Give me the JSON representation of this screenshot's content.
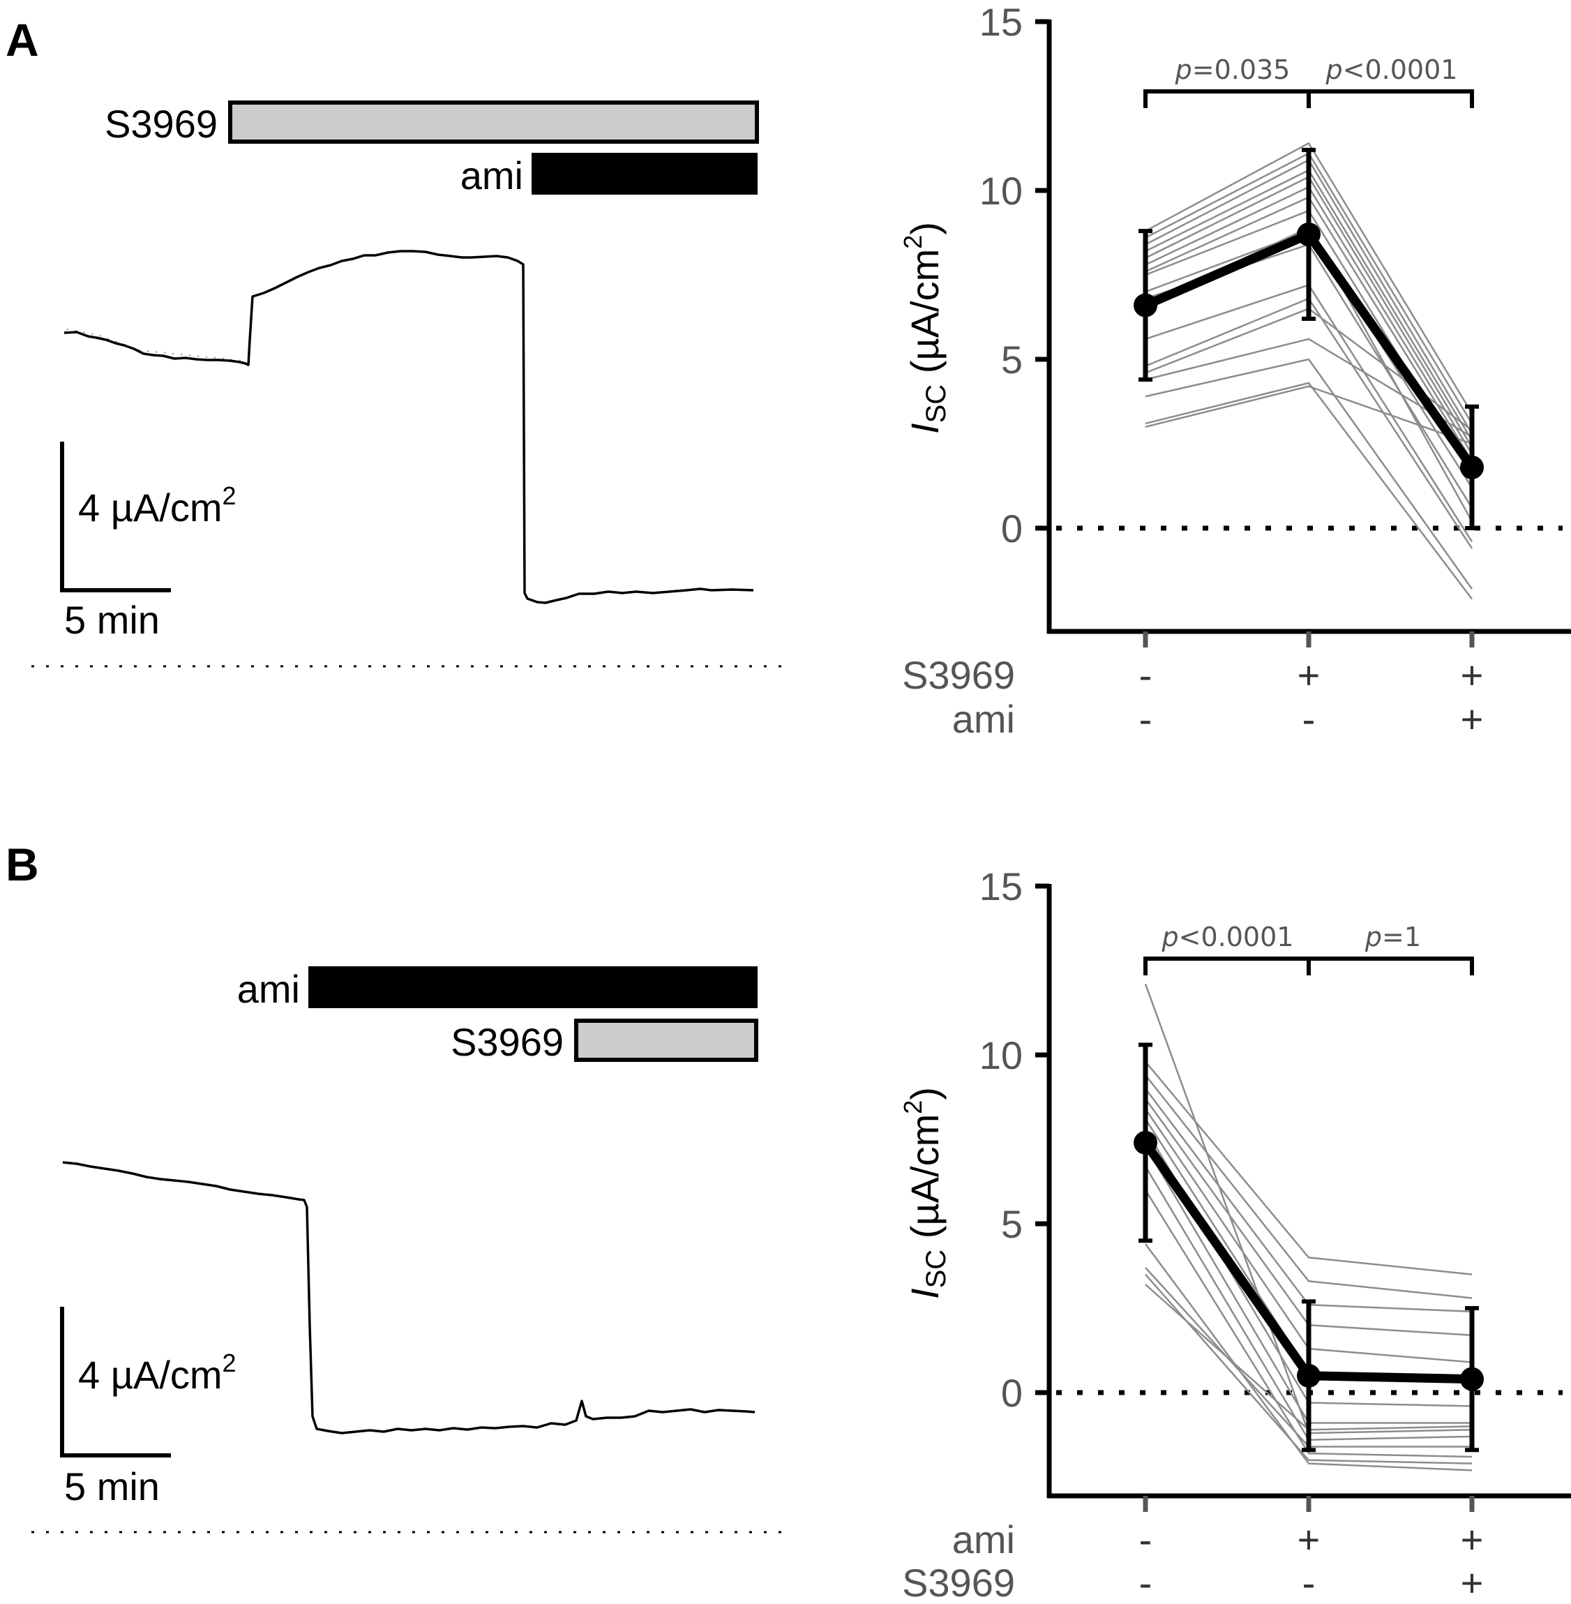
{
  "panels": [
    {
      "letter": "A",
      "trace": {
        "bars": [
          {
            "label": "S3969",
            "fill": "#cccccc"
          },
          {
            "label": "ami",
            "fill": "#000000"
          }
        ],
        "scale_y_label": "4 µA/cm",
        "scale_y_sup": "2",
        "scale_x_label": "5 min"
      },
      "condition_rows": [
        {
          "label": "S3969",
          "signs": [
            "-",
            "+",
            "+"
          ]
        },
        {
          "label": "ami",
          "signs": [
            "-",
            "-",
            "+"
          ]
        }
      ],
      "pvalues": [
        {
          "p": "p",
          "rest": "=0.035"
        },
        {
          "p": "p",
          "rest": "<0.0001"
        }
      ]
    },
    {
      "letter": "B",
      "trace": {
        "bars": [
          {
            "label": "ami",
            "fill": "#000000"
          },
          {
            "label": "S3969",
            "fill": "#cccccc"
          }
        ],
        "scale_y_label": "4 µA/cm",
        "scale_y_sup": "2",
        "scale_x_label": "5 min"
      },
      "condition_rows": [
        {
          "label": "ami",
          "signs": [
            "-",
            "+",
            "+"
          ]
        },
        {
          "label": "S3969",
          "signs": [
            "-",
            "-",
            "+"
          ]
        }
      ],
      "pvalues": [
        {
          "p": "p",
          "rest": "<0.0001"
        },
        {
          "p": "p",
          "rest": "=1"
        }
      ]
    }
  ],
  "axis": {
    "y_label_I": "I",
    "y_label_sub": "SC",
    "y_label_rest": " (µA/cm",
    "y_label_sup": "2",
    "y_label_close": ")",
    "ticks": [
      "0",
      "5",
      "10",
      "15"
    ]
  },
  "chart_data": [
    {
      "type": "line",
      "panel": "A",
      "x": [
        1,
        2,
        3
      ],
      "ylim": [
        -3,
        15
      ],
      "yticks": [
        0,
        5,
        10,
        15
      ],
      "reference_line_y": 0,
      "mean": {
        "values": [
          6.6,
          8.7,
          1.8
        ],
        "err_low": [
          4.4,
          6.2,
          0.0
        ],
        "err_high": [
          8.8,
          11.2,
          3.6
        ]
      },
      "individual": [
        [
          8.8,
          11.4,
          3.4
        ],
        [
          8.6,
          11.1,
          3.1
        ],
        [
          8.4,
          10.9,
          2.8
        ],
        [
          8.2,
          10.6,
          2.6
        ],
        [
          8.0,
          10.4,
          2.4
        ],
        [
          7.8,
          10.1,
          2.2
        ],
        [
          7.6,
          9.8,
          2.0
        ],
        [
          7.5,
          9.4,
          1.6
        ],
        [
          7.0,
          8.8,
          1.2
        ],
        [
          6.8,
          8.4,
          0.6
        ],
        [
          6.6,
          8.9,
          0.2
        ],
        [
          5.6,
          7.2,
          -0.4
        ],
        [
          4.8,
          6.8,
          -0.6
        ],
        [
          4.6,
          6.5,
          2.9
        ],
        [
          4.4,
          5.6,
          2.7
        ],
        [
          3.9,
          5.0,
          -1.8
        ],
        [
          3.1,
          4.3,
          -2.1
        ],
        [
          3.0,
          4.2,
          2.5
        ]
      ]
    },
    {
      "type": "line",
      "panel": "B",
      "x": [
        1,
        2,
        3
      ],
      "ylim": [
        -3,
        15
      ],
      "yticks": [
        0,
        5,
        10,
        15
      ],
      "reference_line_y": 0,
      "mean": {
        "values": [
          7.4,
          0.5,
          0.4
        ],
        "err_low": [
          4.5,
          -1.7,
          -1.7
        ],
        "err_high": [
          10.3,
          2.7,
          2.5
        ]
      },
      "individual": [
        [
          12.1,
          -1.2,
          -1.1
        ],
        [
          9.8,
          4.0,
          3.5
        ],
        [
          9.4,
          3.3,
          2.8
        ],
        [
          9.0,
          2.6,
          2.4
        ],
        [
          8.7,
          2.0,
          1.7
        ],
        [
          8.4,
          1.3,
          0.9
        ],
        [
          8.1,
          0.6,
          0.3
        ],
        [
          7.8,
          -0.3,
          -0.4
        ],
        [
          7.3,
          -0.9,
          -0.9
        ],
        [
          6.7,
          -1.4,
          -1.3
        ],
        [
          6.0,
          -1.8,
          -1.9
        ],
        [
          4.4,
          -2.1,
          -2.3
        ],
        [
          3.7,
          -1.6,
          -1.6
        ],
        [
          3.5,
          -2.0,
          -2.1
        ],
        [
          3.2,
          -1.1,
          -1.0
        ]
      ]
    }
  ]
}
